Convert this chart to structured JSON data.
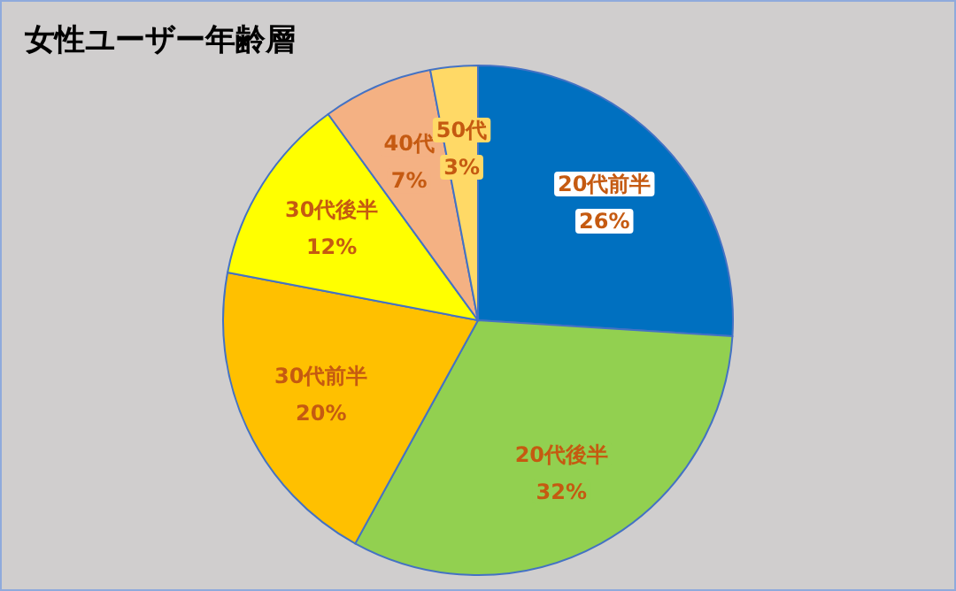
{
  "chart_data": {
    "type": "pie",
    "title": "女性ユーザー年齢層",
    "categories": [
      "20代前半",
      "20代後半",
      "30代前半",
      "30代後半",
      "40代",
      "50代"
    ],
    "values": [
      26,
      32,
      20,
      12,
      7,
      3
    ],
    "value_labels": [
      "26%",
      "32%",
      "20%",
      "12%",
      "7%",
      "3%"
    ],
    "colors": [
      "#0070c0",
      "#92d050",
      "#ffc000",
      "#ffff00",
      "#f4b183",
      "#ffd966"
    ]
  }
}
